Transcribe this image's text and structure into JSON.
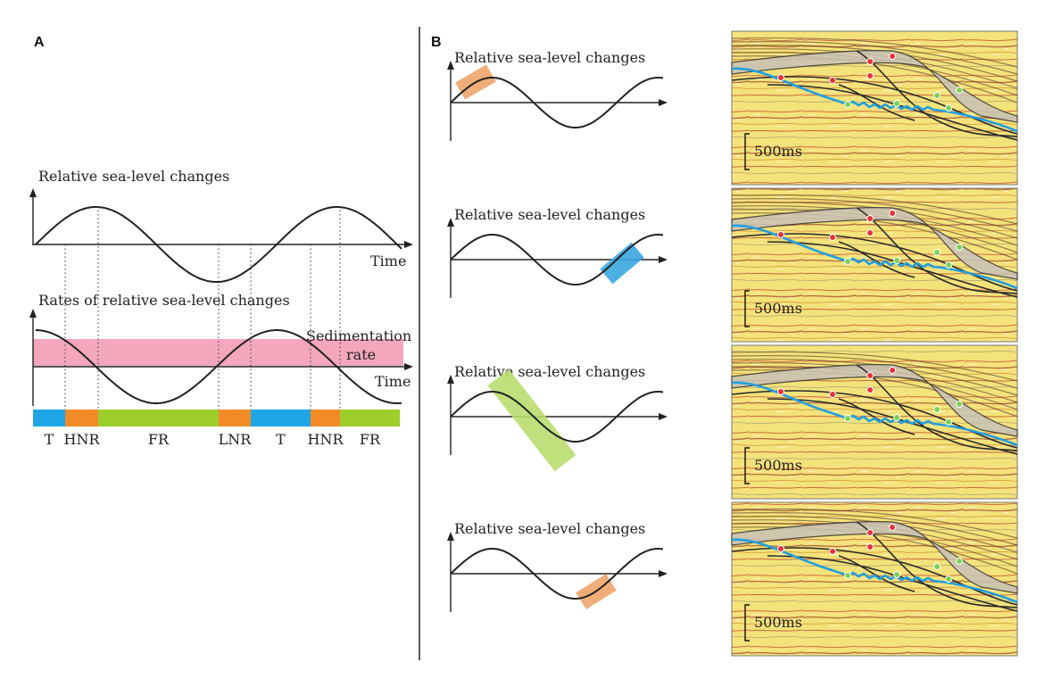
{
  "panel_a": {
    "letter": "A",
    "top_caption": "Relative sea-level changes",
    "top_axis_label": "Time",
    "bottom_caption": "Rates of relative sea-level changes",
    "sedimentation_label_1": "Sedimentation",
    "sedimentation_label_2": "rate",
    "bottom_axis_label": "Time",
    "colors": {
      "pink_band": "#f3a6bc",
      "T": "#1ea6e6",
      "HNR": "#f18a27",
      "FR": "#9dce2a",
      "LNR": "#f18a27"
    },
    "segments": [
      {
        "label": "T",
        "color": "#1ea6e6"
      },
      {
        "label": "HNR",
        "color": "#f18a27"
      },
      {
        "label": "FR",
        "color": "#9dce2a"
      },
      {
        "label": "LNR",
        "color": "#f18a27"
      },
      {
        "label": "T",
        "color": "#1ea6e6"
      },
      {
        "label": "HNR",
        "color": "#f18a27"
      },
      {
        "label": "FR",
        "color": "#9dce2a"
      }
    ]
  },
  "panel_b": {
    "letter": "B",
    "rows": [
      {
        "caption": "Relative sea-level changes",
        "highlight_color": "#f0a46a",
        "scale_label": "500ms"
      },
      {
        "caption": "Relative sea-level changes",
        "highlight_color": "#3aa7e0",
        "scale_label": "500ms"
      },
      {
        "caption": "Relative sea-level changes",
        "highlight_color": "#b8dd6e",
        "scale_label": "500ms"
      },
      {
        "caption": "Relative sea-level changes",
        "highlight_color": "#f0a46a",
        "scale_label": "500ms"
      }
    ],
    "marker_colors": {
      "red": "#e8323a",
      "green": "#7ad256"
    },
    "seismic_colors": {
      "base": "#f4e27a",
      "blue_horizon": "#1f9fe0",
      "wedge": "#c9c2b8"
    }
  }
}
